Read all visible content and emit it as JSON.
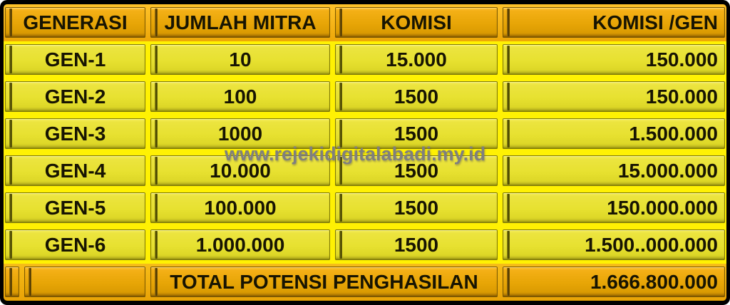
{
  "chart_data": {
    "type": "table",
    "columns": [
      "GENERASI",
      "JUMLAH MITRA",
      "KOMISI",
      "KOMISI /GEN"
    ],
    "rows": [
      [
        "GEN-1",
        "10",
        "15.000",
        "150.000"
      ],
      [
        "GEN-2",
        "100",
        "1500",
        "150.000"
      ],
      [
        "GEN-3",
        "1000",
        "1500",
        "1.500.000"
      ],
      [
        "GEN-4",
        "10.000",
        "1500",
        "15.000.000"
      ],
      [
        "GEN-5",
        "100.000",
        "1500",
        "150.000.000"
      ],
      [
        "GEN-6",
        "1.000.000",
        "1500",
        "1.500..000.000"
      ]
    ],
    "total": {
      "label": "TOTAL POTENSI PENGHASILAN",
      "value": "1.666.800.000"
    },
    "layout": {
      "header_align": [
        "center",
        "center",
        "center",
        "right"
      ],
      "column_align": [
        "center",
        "center",
        "center",
        "right"
      ],
      "grid": "beveled gold cells"
    }
  },
  "watermark": "www.rejekidigitalabadi.my.id",
  "colors": {
    "header_fill": "#E7A506",
    "cell_fill": "#E7E130",
    "band_yellow": "#FFF103",
    "band_amber": "#EDA708",
    "watermark_gray": "#7F7F7F",
    "text": "#171402",
    "frame": "#000000"
  }
}
